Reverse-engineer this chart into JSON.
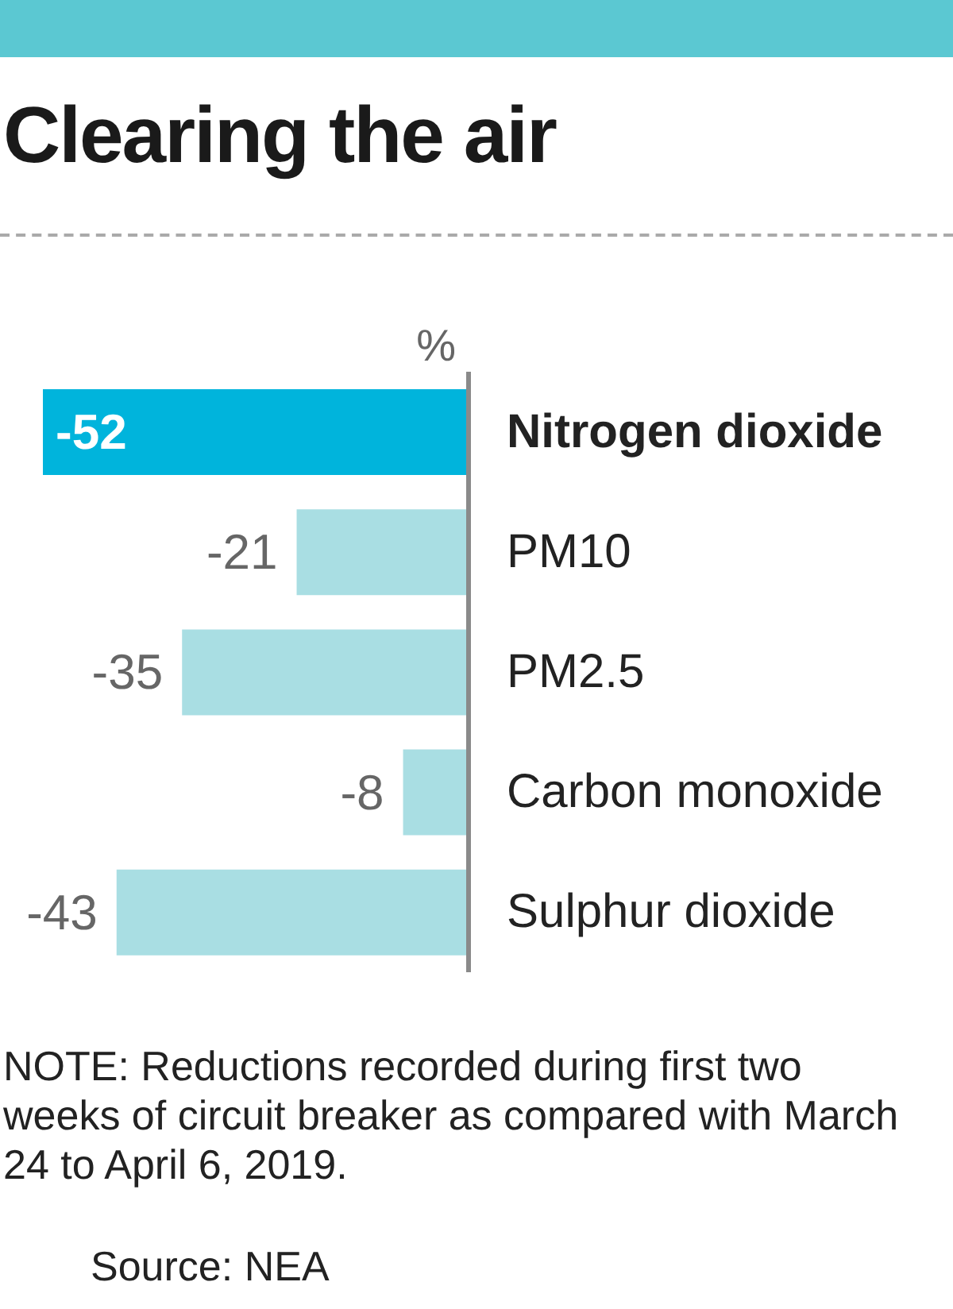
{
  "chart_data": {
    "type": "bar",
    "orientation": "horizontal",
    "title": "Clearing the air",
    "xlabel": "%",
    "categories": [
      "Nitrogen dioxide",
      "PM10",
      "PM2.5",
      "Carbon monoxide",
      "Sulphur dioxide"
    ],
    "values": [
      -52,
      -21,
      -35,
      -8,
      -43
    ],
    "colors": [
      "#00b4dc",
      "#a9dee3",
      "#a9dee3",
      "#a9dee3",
      "#a9dee3"
    ],
    "data_labels": true,
    "annotations": [
      "NOTE: Reductions recorded during first two weeks of circuit breaker as compared with March 24 to April 6, 2019.",
      "Source: NEA"
    ]
  }
}
